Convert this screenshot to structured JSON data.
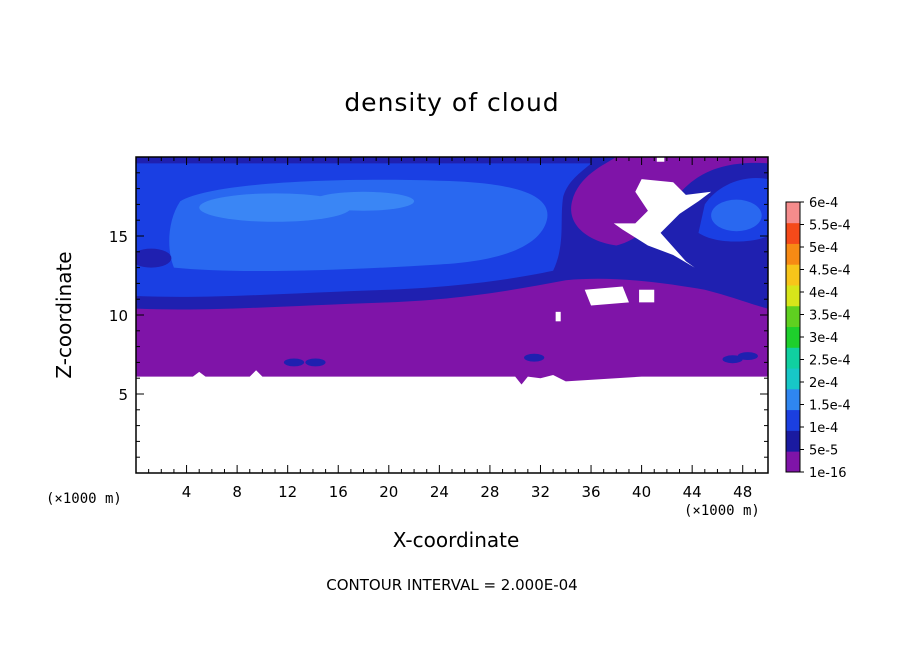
{
  "chart_data": {
    "type": "heatmap",
    "title": "density of cloud",
    "xlabel": "X-coordinate",
    "ylabel": "Z-coordinate",
    "x_unit_label": "(×1000 m)",
    "y_unit_label": "(×1000 m)",
    "xlim": [
      0,
      50
    ],
    "ylim": [
      0,
      20
    ],
    "x_ticks": [
      4,
      8,
      12,
      16,
      20,
      24,
      28,
      32,
      36,
      40,
      44,
      48
    ],
    "y_ticks": [
      5,
      10,
      15
    ],
    "footer": "CONTOUR INTERVAL = 2.000E-04",
    "colorbar": {
      "labels": [
        "1e-16",
        "5e-5",
        "1e-4",
        "1.5e-4",
        "2e-4",
        "2.5e-4",
        "3e-4",
        "3.5e-4",
        "4e-4",
        "4.5e-4",
        "5e-4",
        "5.5e-4",
        "6e-4"
      ],
      "colors": [
        "#7f14a8",
        "#1a1aa0",
        "#1b3fe0",
        "#2f86f0",
        "#17c7c7",
        "#10d0a0",
        "#1ecf2c",
        "#5fd020",
        "#d7e51a",
        "#f7c51a",
        "#f78a14",
        "#f54a1a",
        "#f58c8c"
      ]
    },
    "field_colors": {
      "purple": "#7f14a8",
      "dark_blue": "#1f20b0",
      "mid_blue": "#1a3fe3",
      "light_blue": "#2968f0",
      "lightest_blue": "#3a86f5",
      "empty": "#ffffff"
    }
  }
}
